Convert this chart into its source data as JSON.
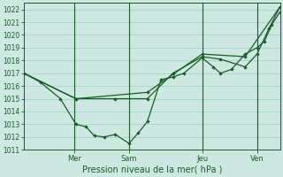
{
  "title": "Pression niveau de la mer( hPa )",
  "bg_color": "#cce8e0",
  "grid_color": "#9ecfc4",
  "line_color": "#1a5c28",
  "ylim": [
    1011,
    1022.5
  ],
  "yticks": [
    1011,
    1012,
    1013,
    1014,
    1015,
    1016,
    1017,
    1018,
    1019,
    1020,
    1021,
    1022
  ],
  "xlim": [
    0,
    280
  ],
  "day_positions": [
    55,
    115,
    195,
    255
  ],
  "day_labels": [
    "Mer",
    "Sam",
    "Jeu",
    "Ven"
  ],
  "series1_x": [
    0,
    18,
    40,
    57,
    68,
    77,
    88,
    100,
    115,
    125,
    135,
    150,
    163,
    175,
    195,
    207,
    215,
    227,
    242,
    255,
    263,
    271,
    280
  ],
  "series1_y": [
    1017.0,
    1016.3,
    1015.0,
    1013.0,
    1012.8,
    1012.1,
    1012.0,
    1012.2,
    1011.5,
    1012.3,
    1013.2,
    1016.5,
    1016.7,
    1017.0,
    1018.2,
    1017.5,
    1017.0,
    1017.3,
    1018.5,
    1019.0,
    1019.5,
    1020.8,
    1021.8
  ],
  "series2_x": [
    0,
    57,
    100,
    135,
    163,
    195,
    215,
    242,
    255,
    268,
    280
  ],
  "series2_y": [
    1017.0,
    1015.0,
    1015.0,
    1015.0,
    1017.0,
    1018.3,
    1018.1,
    1017.5,
    1018.5,
    1020.5,
    1022.2
  ],
  "series3_x": [
    0,
    57,
    135,
    195,
    242,
    280
  ],
  "series3_y": [
    1017.0,
    1015.0,
    1015.5,
    1018.5,
    1018.3,
    1022.2
  ]
}
